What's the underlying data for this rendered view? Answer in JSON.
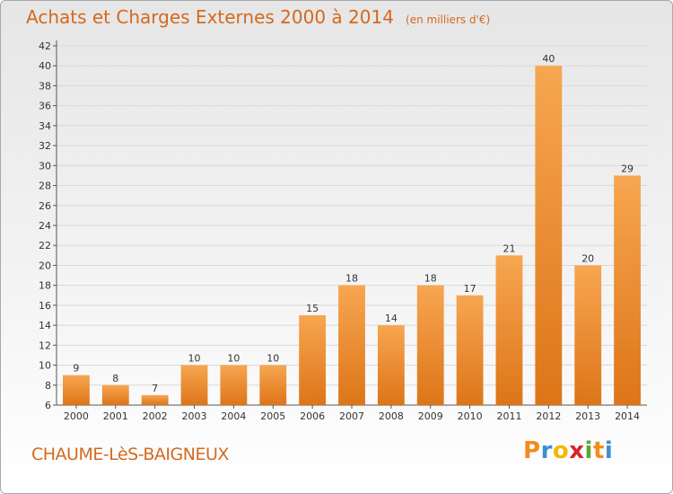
{
  "header": {
    "title": "Achats et Charges Externes 2000 à 2014",
    "unit": "(en milliers d'€)"
  },
  "footer": {
    "town": "CHAUME-LèS-BAIGNEUX",
    "brand": {
      "letters": [
        "P",
        "r",
        "o",
        "x",
        "i",
        "t",
        "i"
      ],
      "colors": [
        "#f28c1c",
        "#3a8fd1",
        "#f5b800",
        "#d8242b",
        "#5aa830",
        "#f28c1c",
        "#3a8fd1"
      ]
    }
  },
  "colors": {
    "title": "#d4691e",
    "bar_light": "#f7a651",
    "bar_dark": "#dd7518",
    "grid": "#d9d9d9"
  },
  "chart_data": {
    "type": "bar",
    "title": "Achats et Charges Externes 2000 à 2014",
    "xlabel": "",
    "ylabel": "",
    "categories": [
      "2000",
      "2001",
      "2002",
      "2003",
      "2004",
      "2005",
      "2006",
      "2007",
      "2008",
      "2009",
      "2010",
      "2011",
      "2012",
      "2013",
      "2014"
    ],
    "values": [
      9,
      8,
      7,
      10,
      10,
      10,
      15,
      18,
      14,
      18,
      17,
      21,
      40,
      20,
      29
    ],
    "ylim": [
      6,
      42
    ],
    "yticks": [
      6,
      8,
      10,
      12,
      14,
      16,
      18,
      20,
      22,
      24,
      26,
      28,
      30,
      32,
      34,
      36,
      38,
      40,
      42
    ],
    "grid": "horizontal",
    "legend": "none"
  }
}
